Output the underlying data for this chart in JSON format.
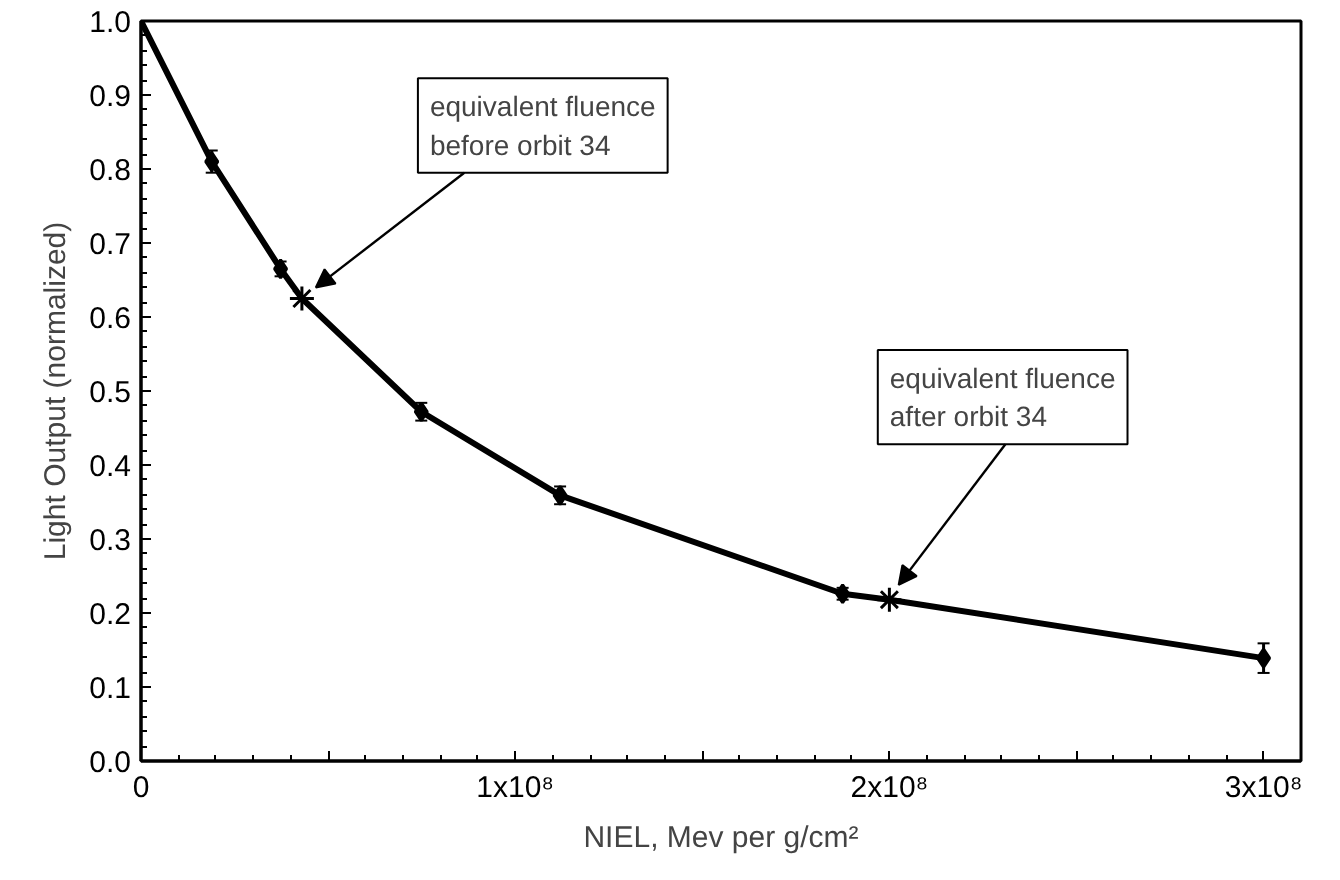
{
  "chart_data": {
    "type": "line",
    "xlabel": "NIEL, Mev per g/cm²",
    "ylabel": "Light Output (normalized)",
    "xlim": [
      0,
      310000000
    ],
    "ylim": [
      0,
      1
    ],
    "xticks": [
      0,
      {
        "value": 50000000,
        "label": null
      },
      {
        "value": 100000000,
        "label": "1x10⁸"
      },
      {
        "value": 150000000,
        "label": null
      },
      {
        "value": 200000000,
        "label": "2x10⁸"
      },
      {
        "value": 250000000,
        "label": null
      },
      {
        "value": 300000000,
        "label": "3x10⁸"
      }
    ],
    "yticks": [
      {
        "value": 0,
        "label": "0.0"
      },
      0.1,
      0.2,
      0.3,
      0.4,
      0.5,
      0.6,
      0.7,
      0.8,
      0.9,
      {
        "value": 1,
        "label": "1.0"
      }
    ],
    "grid": false,
    "series": [
      {
        "color": "#000000",
        "marker": "none",
        "x": [
          0,
          18900000,
          37300000,
          43000000,
          74900000,
          112000000,
          187500000,
          200000000,
          300000000
        ],
        "values": [
          1.0,
          0.81,
          0.665,
          0.625,
          0.472,
          0.359,
          0.226,
          0.218,
          0.139
        ]
      },
      {
        "type": "scatter",
        "color": "#000000",
        "marker": "diamond",
        "x": [
          18900000,
          37300000,
          74900000,
          112000000,
          187500000,
          300000000
        ],
        "values": [
          0.81,
          0.665,
          0.472,
          0.359,
          0.226,
          0.139
        ],
        "errors": [
          0.015,
          0.01,
          0.012,
          0.012,
          0.008,
          0.02
        ]
      },
      {
        "type": "scatter",
        "color": "#000000",
        "marker": "cross",
        "x": [
          43000000,
          200000000
        ],
        "values": [
          0.625,
          0.218
        ]
      }
    ],
    "annotations": [
      {
        "text": "equivalent fluence\nbefore orbit 34",
        "x": 43000000,
        "y": 0.625
      },
      {
        "text": "equivalent fluence\nafter orbit 34",
        "x": 200000000,
        "y": 0.218
      }
    ]
  }
}
